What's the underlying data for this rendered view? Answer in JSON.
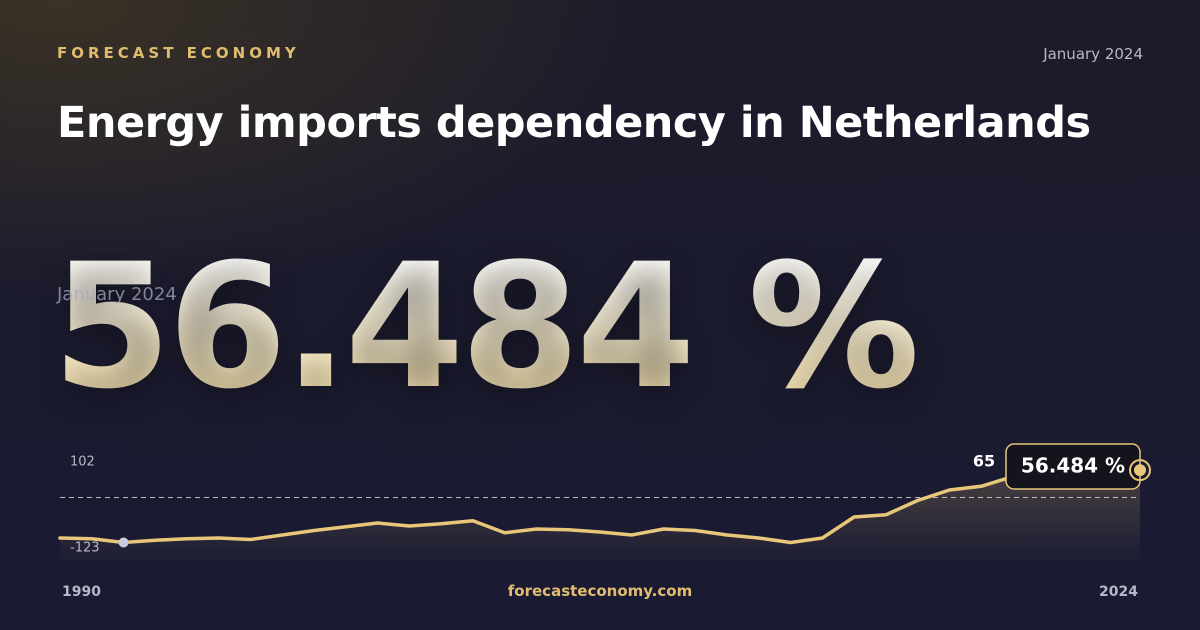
{
  "brand": "FORECAST ECONOMY",
  "date": "January 2024",
  "title": "Energy imports dependency in Netherlands",
  "footer": "forecasteconomy.com",
  "chart_data": {
    "type": "line",
    "x": [
      1990,
      1991,
      1992,
      1993,
      1994,
      1995,
      1996,
      1997,
      1998,
      1999,
      2000,
      2001,
      2002,
      2003,
      2004,
      2005,
      2006,
      2007,
      2008,
      2009,
      2010,
      2011,
      2012,
      2013,
      2014,
      2015,
      2016,
      2017,
      2018,
      2019,
      2020,
      2021,
      2022,
      2023,
      2024
    ],
    "values": [
      -34,
      -35,
      -40,
      -37,
      -35,
      -34,
      -36,
      -30,
      -24,
      -19,
      -14,
      -18,
      -15,
      -11,
      -27,
      -22,
      -23,
      -26,
      -30,
      -22,
      -24,
      -30,
      -34,
      -40,
      -34,
      -6,
      -3,
      16,
      30,
      35,
      48,
      50,
      52,
      54,
      56.484
    ],
    "value_labels": [
      null,
      null,
      null,
      null,
      null,
      null,
      null,
      null,
      null,
      null,
      null,
      null,
      null,
      null,
      null,
      null,
      null,
      null,
      null,
      null,
      null,
      null,
      null,
      null,
      null,
      null,
      null,
      null,
      null,
      null,
      null,
      null,
      null,
      null,
      "56.484 %"
    ],
    "color": "#e8c67a",
    "xlim": [
      1990,
      2024
    ],
    "ylim": [
      -70,
      90
    ],
    "reference": 20,
    "range_labels": [
      102,
      -123
    ],
    "peak_label": 65
  }
}
